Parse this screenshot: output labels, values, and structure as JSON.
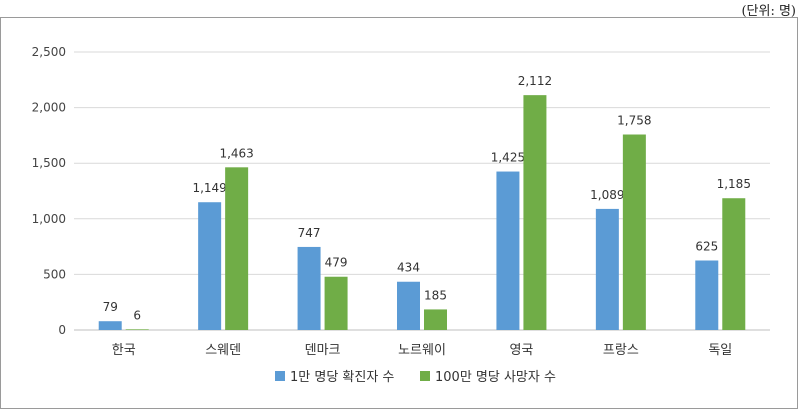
{
  "unit_label": "(단위: 명)",
  "chart_data": {
    "type": "bar",
    "categories": [
      "한국",
      "스웨덴",
      "덴마크",
      "노르웨이",
      "영국",
      "프랑스",
      "독일"
    ],
    "series": [
      {
        "name": "1만 명당 확진자 수",
        "values": [
          79,
          1149,
          747,
          434,
          1425,
          1089,
          625
        ],
        "color": "#5b9bd5"
      },
      {
        "name": "100만 명당 사망자 수",
        "values": [
          6,
          1463,
          479,
          185,
          2112,
          1758,
          1185
        ],
        "color": "#70ad47"
      }
    ],
    "data_labels": [
      [
        "79",
        "1,149",
        "747",
        "434",
        "1,425",
        "1,089",
        "625"
      ],
      [
        "6",
        "1,463",
        "479",
        "185",
        "2,112",
        "1,758",
        "1,185"
      ]
    ],
    "y_ticks": [
      0,
      500,
      1000,
      1500,
      2000,
      2500
    ],
    "y_tick_labels": [
      "0",
      "500",
      "1,000",
      "1,500",
      "2,000",
      "2,500"
    ],
    "ylim": [
      0,
      2500
    ],
    "grid": true,
    "legend_position": "bottom"
  }
}
